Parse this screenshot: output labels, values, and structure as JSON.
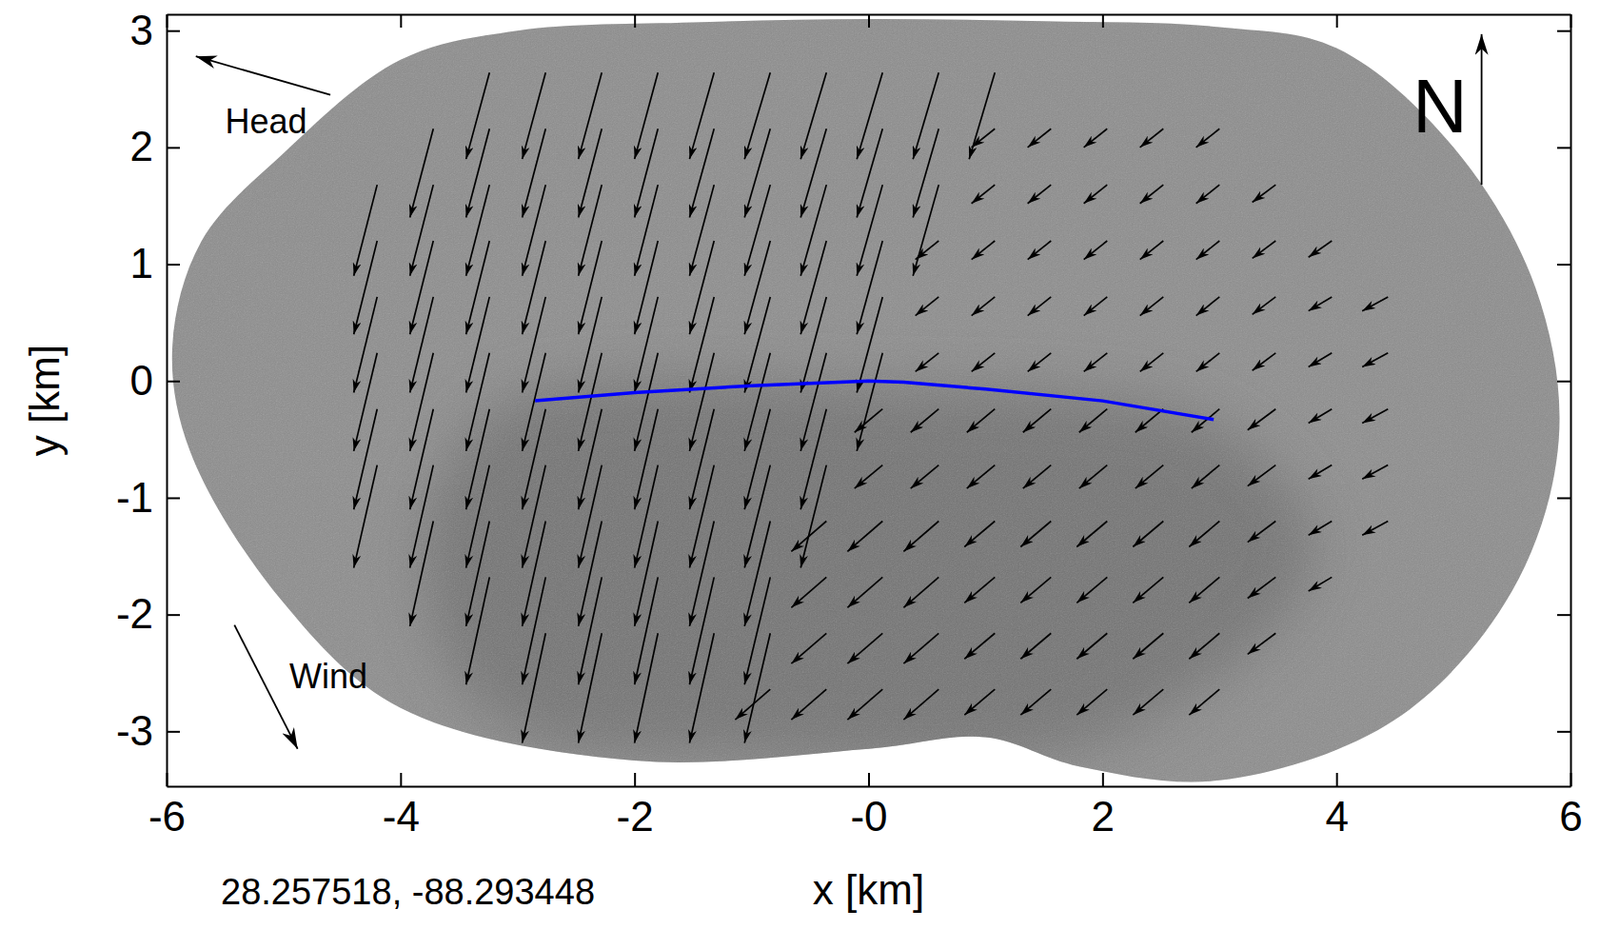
{
  "chart_data": {
    "type": "quiver",
    "x_label": "x [km]",
    "y_label": "y [km]",
    "xlim": [
      -6,
      6
    ],
    "ylim": [
      -3.47,
      3.14
    ],
    "xticks": [
      -6,
      -4,
      -2,
      {
        "value": 0,
        "label": "-0"
      },
      2,
      4,
      6
    ],
    "yticks": [
      -3,
      -2,
      -1,
      0,
      1,
      2,
      3
    ],
    "color": "#000000",
    "columns": [
      {
        "x": -4.2,
        "y": [
          1.68,
          1.2,
          0.72,
          0.24,
          -0.24,
          -0.72
        ],
        "u": [
          -0.2,
          -0.2,
          -0.2,
          -0.2,
          -0.2,
          -0.2
        ],
        "v": [
          -0.78,
          -0.8,
          -0.82,
          -0.84,
          -0.86,
          -0.88
        ]
      },
      {
        "x": -3.72,
        "y": [
          2.16,
          1.68,
          1.2,
          0.72,
          0.24,
          -0.24,
          -0.72,
          -1.2
        ],
        "u": [
          -0.2,
          -0.2,
          -0.2,
          -0.2,
          -0.2,
          -0.2,
          -0.2,
          -0.2
        ],
        "v": [
          -0.76,
          -0.78,
          -0.8,
          -0.82,
          -0.84,
          -0.86,
          -0.88,
          -0.9
        ]
      },
      {
        "x": -3.24,
        "y": [
          2.64,
          2.16,
          1.68,
          1.2,
          0.72,
          0.24,
          -0.24,
          -0.72,
          -1.2,
          -1.68
        ],
        "u": [
          -0.2,
          -0.2,
          -0.2,
          -0.2,
          -0.2,
          -0.2,
          -0.2,
          -0.2,
          -0.2,
          -0.2
        ],
        "v": [
          -0.74,
          -0.76,
          -0.78,
          -0.8,
          -0.82,
          -0.84,
          -0.86,
          -0.88,
          -0.9,
          -0.92
        ]
      },
      {
        "x": -2.76,
        "y": [
          2.64,
          2.16,
          1.68,
          1.2,
          0.72,
          0.24,
          -0.24,
          -0.72,
          -1.2,
          -1.68,
          -2.16
        ],
        "u": [
          -0.2,
          -0.2,
          -0.2,
          -0.2,
          -0.2,
          -0.2,
          -0.2,
          -0.2,
          -0.2,
          -0.2,
          -0.2
        ],
        "v": [
          -0.74,
          -0.76,
          -0.78,
          -0.8,
          -0.82,
          -0.84,
          -0.86,
          -0.88,
          -0.9,
          -0.92,
          -0.94
        ]
      },
      {
        "x": -2.28,
        "y": [
          2.64,
          2.16,
          1.68,
          1.2,
          0.72,
          0.24,
          -0.24,
          -0.72,
          -1.2,
          -1.68,
          -2.16
        ],
        "u": [
          -0.2,
          -0.2,
          -0.2,
          -0.2,
          -0.2,
          -0.2,
          -0.2,
          -0.2,
          -0.2,
          -0.2,
          -0.2
        ],
        "v": [
          -0.74,
          -0.76,
          -0.78,
          -0.8,
          -0.82,
          -0.84,
          -0.86,
          -0.88,
          -0.9,
          -0.92,
          -0.94
        ]
      },
      {
        "x": -1.8,
        "y": [
          2.64,
          2.16,
          1.68,
          1.2,
          0.72,
          0.24,
          -0.24,
          -0.72,
          -1.2,
          -1.68,
          -2.16
        ],
        "u": [
          -0.2,
          -0.2,
          -0.2,
          -0.2,
          -0.2,
          -0.2,
          -0.2,
          -0.2,
          -0.2,
          -0.2,
          -0.2
        ],
        "v": [
          -0.74,
          -0.76,
          -0.78,
          -0.8,
          -0.82,
          -0.84,
          -0.86,
          -0.88,
          -0.9,
          -0.92,
          -0.94
        ]
      },
      {
        "x": -1.32,
        "y": [
          2.64,
          2.16,
          1.68,
          1.2,
          0.72,
          0.24,
          -0.24,
          -0.72,
          -1.2,
          -1.68,
          -2.16
        ],
        "u": [
          -0.21,
          -0.21,
          -0.21,
          -0.21,
          -0.21,
          -0.21,
          -0.21,
          -0.21,
          -0.21,
          -0.21,
          -0.21
        ],
        "v": [
          -0.74,
          -0.76,
          -0.78,
          -0.8,
          -0.82,
          -0.84,
          -0.86,
          -0.88,
          -0.9,
          -0.92,
          -0.94
        ]
      },
      {
        "x": -0.84,
        "y": [
          2.64,
          2.16,
          1.68,
          1.2,
          0.72,
          0.24,
          -0.24,
          -0.72,
          -1.2,
          -1.68,
          -2.16,
          -2.64
        ],
        "u": [
          -0.22,
          -0.22,
          -0.22,
          -0.22,
          -0.22,
          -0.22,
          -0.22,
          -0.22,
          -0.22,
          -0.22,
          -0.22,
          -0.3
        ],
        "v": [
          -0.74,
          -0.76,
          -0.78,
          -0.8,
          -0.82,
          -0.84,
          -0.86,
          -0.88,
          -0.9,
          -0.92,
          -0.94,
          -0.26
        ]
      },
      {
        "x": -0.36,
        "y": [
          2.64,
          2.16,
          1.68,
          1.2,
          0.72,
          0.24,
          -0.24,
          -0.72,
          -1.2,
          -1.68,
          -2.16,
          -2.64
        ],
        "u": [
          -0.22,
          -0.22,
          -0.22,
          -0.22,
          -0.22,
          -0.22,
          -0.22,
          -0.22,
          -0.3,
          -0.3,
          -0.3,
          -0.3
        ],
        "v": [
          -0.74,
          -0.76,
          -0.78,
          -0.8,
          -0.82,
          -0.84,
          -0.86,
          -0.88,
          -0.26,
          -0.26,
          -0.26,
          -0.26
        ]
      },
      {
        "x": 0.12,
        "y": [
          2.64,
          2.16,
          1.68,
          1.2,
          0.72,
          0.24,
          -0.24,
          -0.72,
          -1.2,
          -1.68,
          -2.16,
          -2.64
        ],
        "u": [
          -0.22,
          -0.22,
          -0.22,
          -0.22,
          -0.22,
          -0.22,
          -0.24,
          -0.24,
          -0.3,
          -0.3,
          -0.3,
          -0.3
        ],
        "v": [
          -0.74,
          -0.76,
          -0.78,
          -0.8,
          -0.82,
          -0.84,
          -0.2,
          -0.2,
          -0.26,
          -0.26,
          -0.26,
          -0.26
        ]
      },
      {
        "x": 0.6,
        "y": [
          2.64,
          2.16,
          1.68,
          1.2,
          0.72,
          0.24,
          -0.24,
          -0.72,
          -1.2,
          -1.68,
          -2.16,
          -2.64
        ],
        "u": [
          -0.22,
          -0.22,
          -0.22,
          -0.2,
          -0.2,
          -0.2,
          -0.24,
          -0.24,
          -0.3,
          -0.3,
          -0.3,
          -0.3
        ],
        "v": [
          -0.74,
          -0.76,
          -0.78,
          -0.16,
          -0.16,
          -0.16,
          -0.2,
          -0.2,
          -0.26,
          -0.26,
          -0.26,
          -0.26
        ]
      },
      {
        "x": 1.08,
        "y": [
          2.64,
          2.16,
          1.68,
          1.2,
          0.72,
          0.24,
          -0.24,
          -0.72,
          -1.2,
          -1.68,
          -2.16,
          -2.64
        ],
        "u": [
          -0.22,
          -0.2,
          -0.2,
          -0.2,
          -0.2,
          -0.2,
          -0.24,
          -0.24,
          -0.26,
          -0.26,
          -0.26,
          -0.26
        ],
        "v": [
          -0.74,
          -0.16,
          -0.16,
          -0.16,
          -0.16,
          -0.16,
          -0.2,
          -0.2,
          -0.22,
          -0.22,
          -0.22,
          -0.22
        ]
      },
      {
        "x": 1.56,
        "y": [
          2.16,
          1.68,
          1.2,
          0.72,
          0.24,
          -0.24,
          -0.72,
          -1.2,
          -1.68,
          -2.16,
          -2.64
        ],
        "u": [
          -0.2,
          -0.2,
          -0.2,
          -0.2,
          -0.2,
          -0.24,
          -0.24,
          -0.26,
          -0.26,
          -0.26,
          -0.26
        ],
        "v": [
          -0.16,
          -0.16,
          -0.16,
          -0.16,
          -0.16,
          -0.2,
          -0.2,
          -0.22,
          -0.22,
          -0.22,
          -0.22
        ]
      },
      {
        "x": 2.04,
        "y": [
          2.16,
          1.68,
          1.2,
          0.72,
          0.24,
          -0.24,
          -0.72,
          -1.2,
          -1.68,
          -2.16,
          -2.64
        ],
        "u": [
          -0.2,
          -0.2,
          -0.2,
          -0.2,
          -0.2,
          -0.24,
          -0.24,
          -0.26,
          -0.26,
          -0.26,
          -0.26
        ],
        "v": [
          -0.16,
          -0.16,
          -0.16,
          -0.16,
          -0.16,
          -0.2,
          -0.2,
          -0.22,
          -0.22,
          -0.22,
          -0.22
        ]
      },
      {
        "x": 2.52,
        "y": [
          2.16,
          1.68,
          1.2,
          0.72,
          0.24,
          -0.24,
          -0.72,
          -1.2,
          -1.68,
          -2.16,
          -2.64
        ],
        "u": [
          -0.2,
          -0.2,
          -0.2,
          -0.2,
          -0.2,
          -0.24,
          -0.24,
          -0.26,
          -0.26,
          -0.26,
          -0.26
        ],
        "v": [
          -0.16,
          -0.16,
          -0.16,
          -0.16,
          -0.16,
          -0.2,
          -0.2,
          -0.22,
          -0.22,
          -0.22,
          -0.22
        ]
      },
      {
        "x": 3.0,
        "y": [
          2.16,
          1.68,
          1.2,
          0.72,
          0.24,
          -0.24,
          -0.72,
          -1.2,
          -1.68,
          -2.16,
          -2.64
        ],
        "u": [
          -0.2,
          -0.2,
          -0.2,
          -0.2,
          -0.2,
          -0.24,
          -0.24,
          -0.26,
          -0.26,
          -0.26,
          -0.26
        ],
        "v": [
          -0.16,
          -0.16,
          -0.16,
          -0.16,
          -0.16,
          -0.2,
          -0.2,
          -0.22,
          -0.22,
          -0.22,
          -0.22
        ]
      },
      {
        "x": 3.48,
        "y": [
          1.68,
          1.2,
          0.72,
          0.24,
          -0.24,
          -0.72,
          -1.2,
          -1.68,
          -2.16
        ],
        "u": [
          -0.2,
          -0.2,
          -0.2,
          -0.2,
          -0.24,
          -0.24,
          -0.24,
          -0.24,
          -0.24
        ],
        "v": [
          -0.15,
          -0.15,
          -0.15,
          -0.15,
          -0.18,
          -0.18,
          -0.18,
          -0.18,
          -0.18
        ]
      },
      {
        "x": 3.96,
        "y": [
          1.2,
          0.72,
          0.24,
          -0.24,
          -0.72,
          -1.2,
          -1.68
        ],
        "u": [
          -0.2,
          -0.2,
          -0.2,
          -0.2,
          -0.2,
          -0.2,
          -0.2
        ],
        "v": [
          -0.14,
          -0.12,
          -0.12,
          -0.12,
          -0.12,
          -0.12,
          -0.12
        ]
      },
      {
        "x": 4.44,
        "y": [
          0.72,
          0.24,
          -0.24,
          -0.72,
          -1.2
        ],
        "u": [
          -0.22,
          -0.22,
          -0.22,
          -0.22,
          -0.22
        ],
        "v": [
          -0.12,
          -0.12,
          -0.12,
          -0.12,
          -0.12
        ]
      }
    ],
    "series": [
      {
        "type": "line",
        "color": "#0000ff",
        "x": [
          -2.85,
          -2.0,
          -1.0,
          0.0,
          0.3,
          1.0,
          2.0,
          2.95
        ],
        "y": [
          -0.17,
          -0.1,
          -0.04,
          0.0,
          -0.01,
          -0.07,
          -0.17,
          -0.33
        ]
      }
    ],
    "annotations": [
      "Head",
      "Wind",
      "N",
      "28.257518, -88.293448"
    ]
  }
}
